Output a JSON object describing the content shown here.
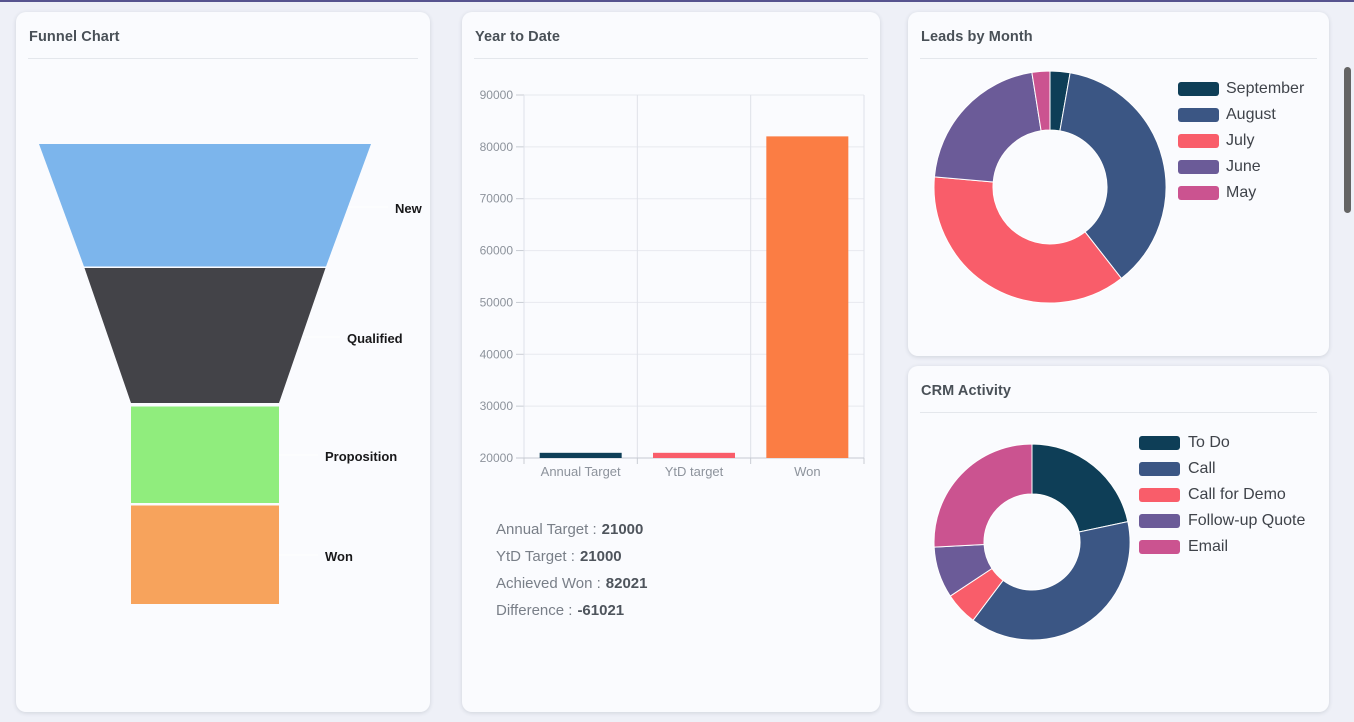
{
  "page": {
    "top_bar_color": "#57548f",
    "background_color": "#eef0f7",
    "card_background_color": "#fafbfe"
  },
  "palette": {
    "dark_teal": "#0e3e57",
    "navy": "#3b5684",
    "red": "#f95d6a",
    "purple": "#6b5b98",
    "magenta": "#cb5390",
    "funnel_blue": "#7cb5ec",
    "funnel_dark": "#434348",
    "funnel_green": "#90ed7d",
    "funnel_orange": "#f7a35c",
    "won_orange": "#fb7d44"
  },
  "funnel_card": {
    "title": "Funnel Chart"
  },
  "ytd_card": {
    "title": "Year to Date",
    "summary": [
      {
        "label": "Annual Target :",
        "value": "21000"
      },
      {
        "label": "YtD Target :",
        "value": "21000"
      },
      {
        "label": "Achieved Won :",
        "value": "82021"
      },
      {
        "label": "Difference :",
        "value": "-61021"
      }
    ]
  },
  "leads_card": {
    "title": "Leads by Month"
  },
  "activity_card": {
    "title": "CRM Activity"
  },
  "chart_data": [
    {
      "id": "funnel",
      "type": "funnel",
      "title": "Funnel Chart",
      "stages": [
        {
          "label": "New",
          "color": "#7cb5ec"
        },
        {
          "label": "Qualified",
          "color": "#434348"
        },
        {
          "label": "Proposition",
          "color": "#90ed7d"
        },
        {
          "label": "Won",
          "color": "#f7a35c"
        }
      ],
      "label_color": "#18181a",
      "connector_color": "#ffffff"
    },
    {
      "id": "ytd",
      "type": "bar",
      "title": "Year to Date",
      "categories": [
        "Annual Target",
        "YtD target",
        "Won"
      ],
      "values": [
        21000,
        21000,
        82021
      ],
      "colors": [
        "#0e3e57",
        "#f95d6a",
        "#fb7d44"
      ],
      "ylim": [
        20000,
        90000
      ],
      "ytick_step": 10000,
      "ytick_labels": [
        "20000",
        "30000",
        "40000",
        "50000",
        "60000",
        "70000",
        "80000",
        "90000"
      ],
      "grid": true,
      "legend_position": "none"
    },
    {
      "id": "leads_by_month",
      "type": "donut",
      "title": "Leads by Month",
      "legend_position": "right",
      "segments": [
        {
          "label": "September",
          "color": "#0e3e57",
          "start_deg": 0,
          "end_deg": 10,
          "share_pct": 2.8
        },
        {
          "label": "August",
          "color": "#3b5684",
          "start_deg": 10,
          "end_deg": 142,
          "share_pct": 36.7
        },
        {
          "label": "July",
          "color": "#f95d6a",
          "start_deg": 142,
          "end_deg": 275,
          "share_pct": 36.9
        },
        {
          "label": "June",
          "color": "#6b5b98",
          "start_deg": 275,
          "end_deg": 351,
          "share_pct": 21.1
        },
        {
          "label": "May",
          "color": "#cb5390",
          "start_deg": 351,
          "end_deg": 360,
          "share_pct": 2.5
        }
      ]
    },
    {
      "id": "crm_activity",
      "type": "donut",
      "title": "CRM Activity",
      "legend_position": "right",
      "segments": [
        {
          "label": "To Do",
          "color": "#0e3e57",
          "start_deg": 0,
          "end_deg": 78,
          "share_pct": 21.7
        },
        {
          "label": "Call",
          "color": "#3b5684",
          "start_deg": 78,
          "end_deg": 217,
          "share_pct": 38.6
        },
        {
          "label": "Call for Demo",
          "color": "#f95d6a",
          "start_deg": 217,
          "end_deg": 236.5,
          "share_pct": 5.4
        },
        {
          "label": "Follow-up Quote",
          "color": "#6b5b98",
          "start_deg": 236.5,
          "end_deg": 267,
          "share_pct": 8.5
        },
        {
          "label": "Email",
          "color": "#cb5390",
          "start_deg": 267,
          "end_deg": 360,
          "share_pct": 25.8
        }
      ]
    }
  ]
}
